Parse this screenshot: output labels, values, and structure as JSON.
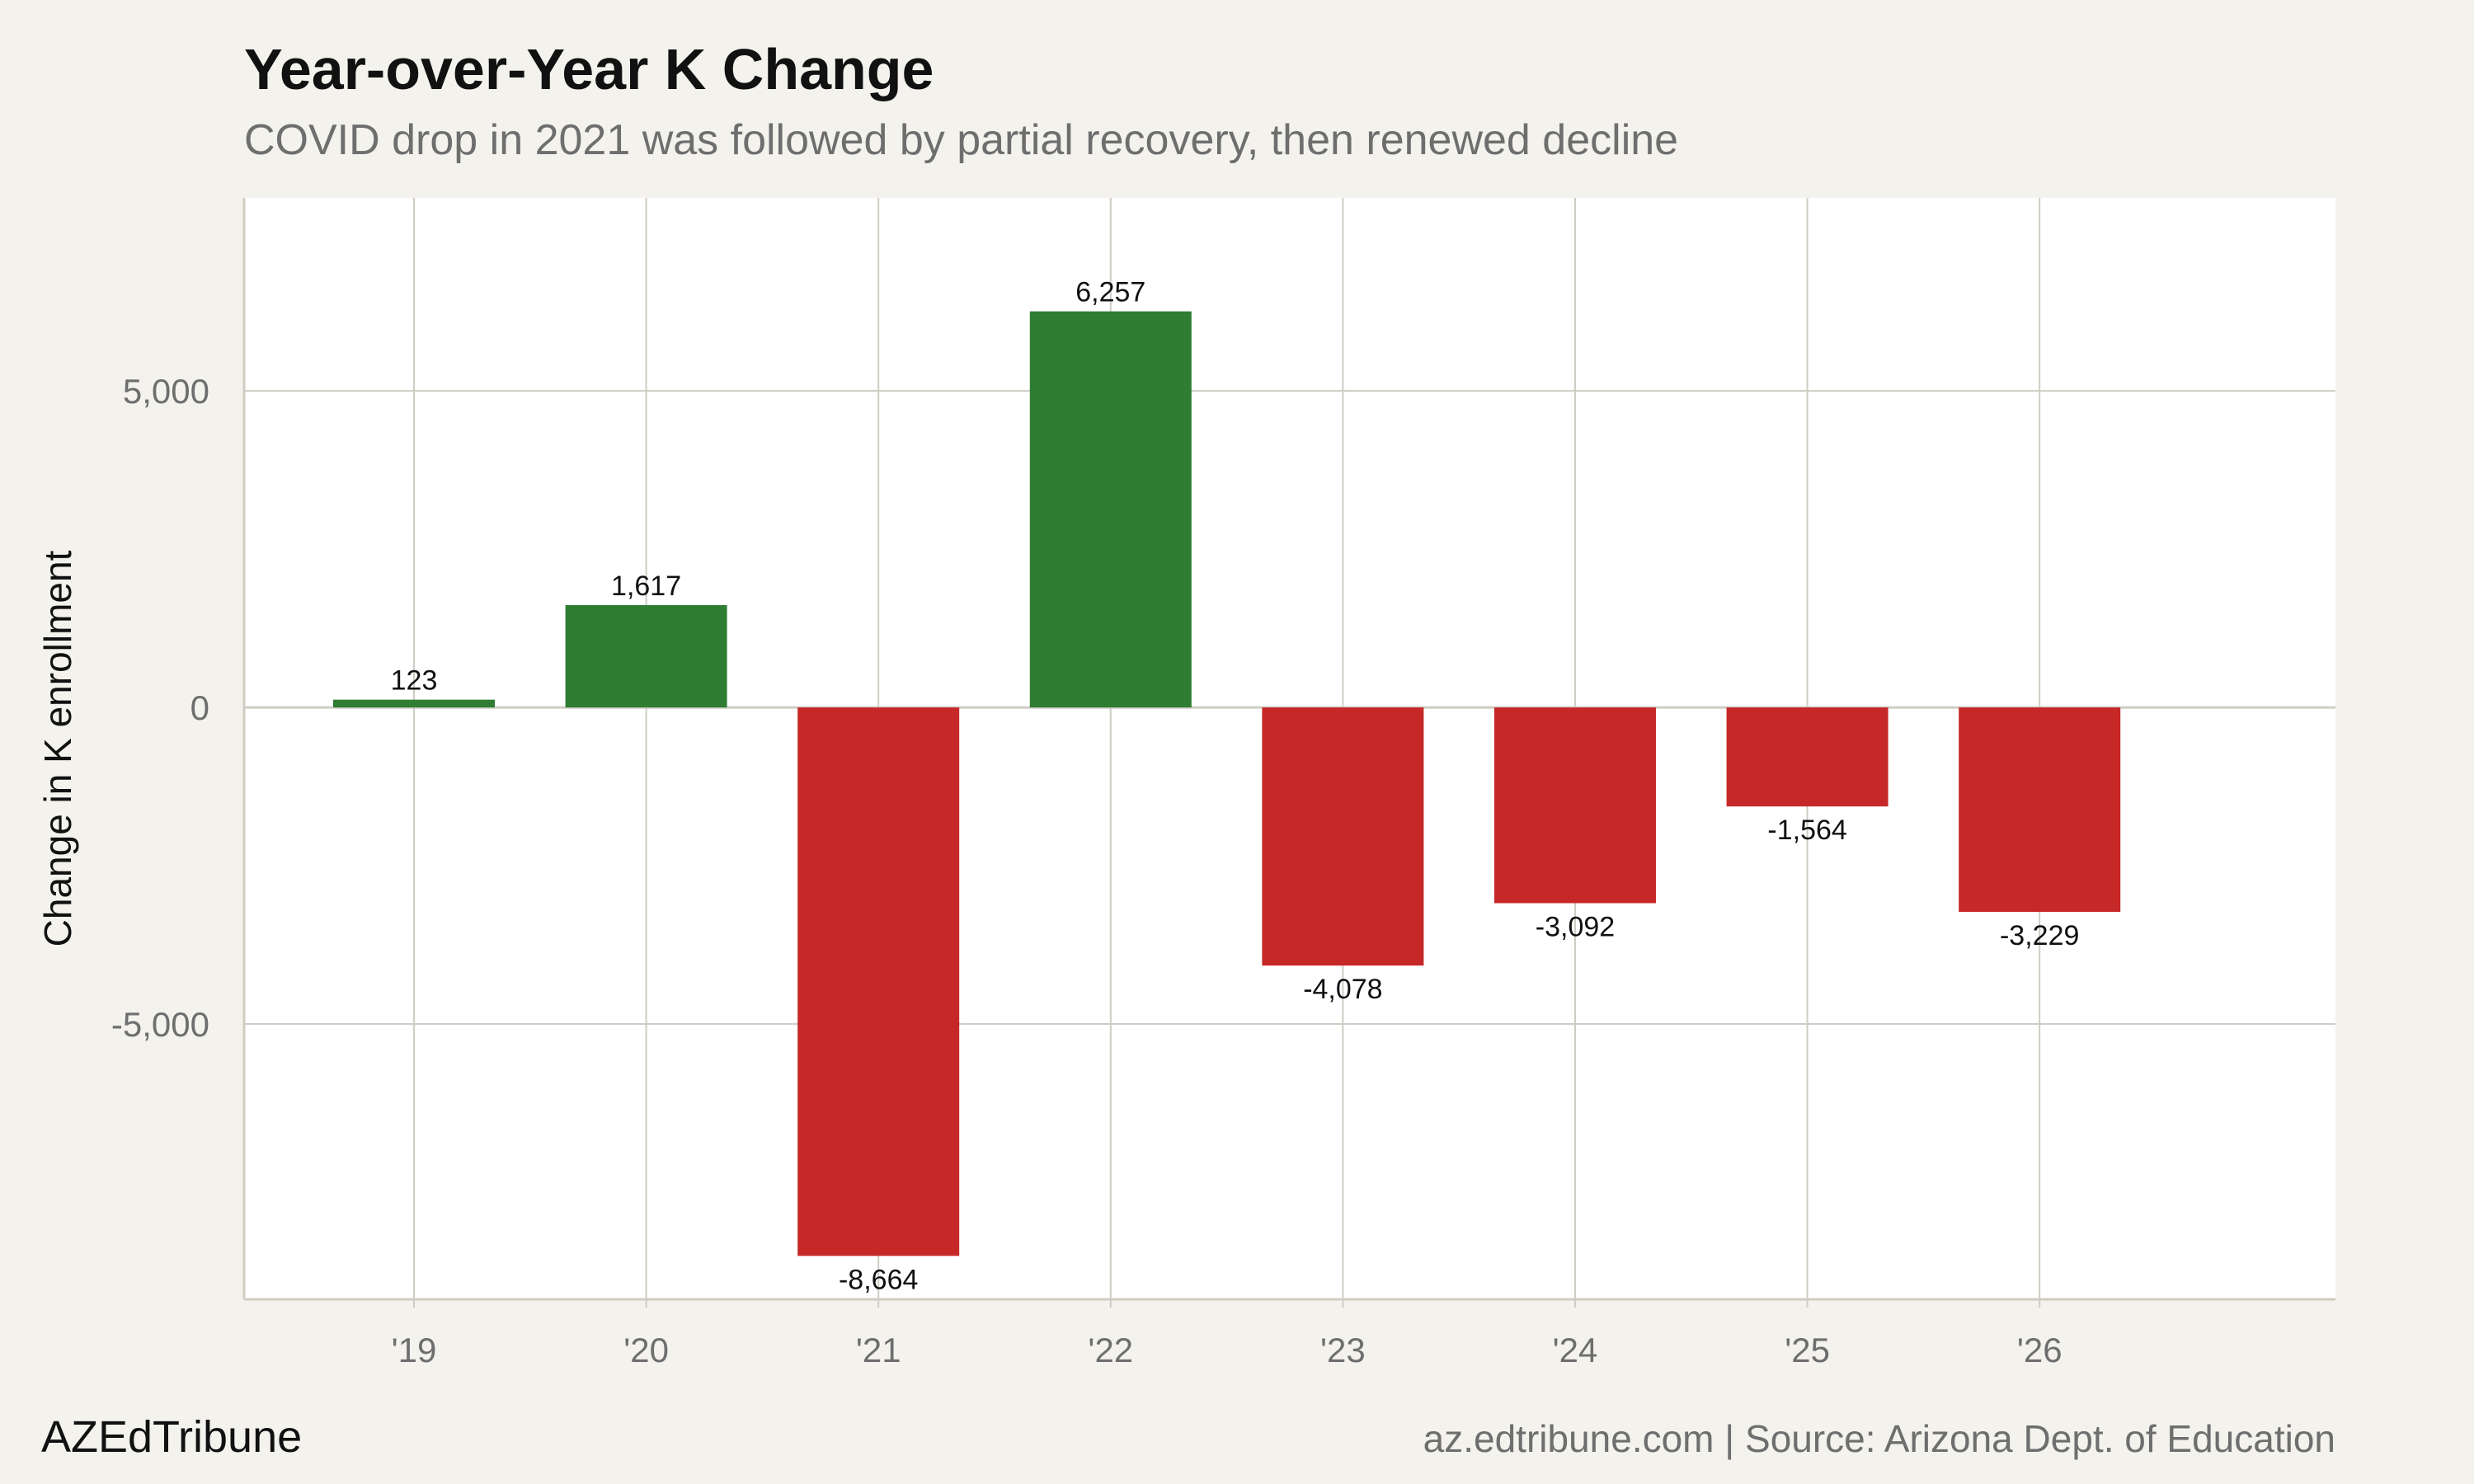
{
  "chart_data": {
    "type": "bar",
    "title": "Year-over-Year K Change",
    "subtitle": "COVID drop in 2021 was followed by partial recovery, then renewed decline",
    "xlabel": "",
    "ylabel": "Change in K enrollment",
    "categories": [
      "'19",
      "'20",
      "'21",
      "'22",
      "'23",
      "'24",
      "'25",
      "'26"
    ],
    "values": [
      123,
      1617,
      -8664,
      6257,
      -4078,
      -3092,
      -1564,
      -3229
    ],
    "value_labels": [
      "123",
      "1,617",
      "-8,664",
      "6,257",
      "-4,078",
      "-3,092",
      "-1,564",
      "-3,229"
    ],
    "ylim": [
      -9350,
      8050
    ],
    "y_ticks": [
      -5000,
      0,
      5000
    ],
    "y_tick_labels": [
      "-5,000",
      "0",
      "5,000"
    ],
    "grid": true,
    "legend": "none",
    "colors": {
      "positive": "#2e7d32",
      "negative": "#c62828",
      "panel": "#ffffff",
      "background": "#f4f2ed",
      "grid": "#cfccc4"
    }
  },
  "footer": {
    "brand": "AZEdTribune",
    "source": "az.edtribune.com | Source: Arizona Dept. of Education"
  }
}
